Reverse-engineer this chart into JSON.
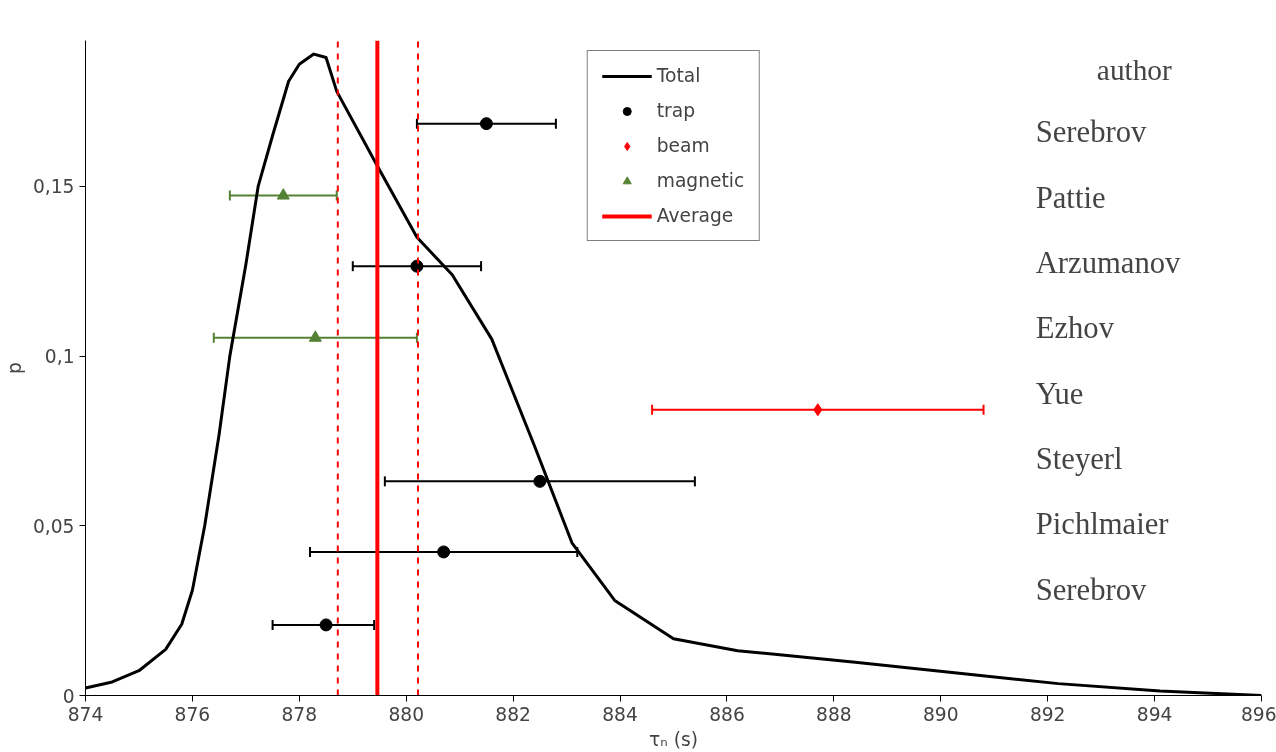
{
  "chart_data": {
    "type": "scatter",
    "xlabel": "τₙ (s)",
    "ylabel": "p",
    "xlim": [
      874,
      896
    ],
    "xticks": [
      874,
      876,
      878,
      880,
      882,
      884,
      886,
      888,
      890,
      892,
      894,
      896
    ],
    "ylim": [
      0,
      0.193
    ],
    "yticks": [
      0,
      {
        "value": 0.05,
        "label": "0,05"
      },
      {
        "value": 0.1,
        "label": "0,1"
      },
      {
        "value": 0.15,
        "label": "0,15"
      }
    ],
    "grid": false,
    "legend": "top",
    "series": [
      {
        "name": "Total",
        "type": "line",
        "color": "#000000",
        "marker": "none",
        "line_style": "solid",
        "x": [
          874,
          874.5,
          875,
          875.5,
          875.8,
          876.0,
          876.23,
          876.5,
          876.7,
          877.0,
          877.23,
          877.5,
          877.8,
          878.0,
          878.27,
          878.5,
          878.7,
          879.46,
          880.2,
          880.86,
          881.6,
          882.4,
          883.1,
          883.9,
          885.0,
          886.2,
          888.4,
          890.3,
          892.2,
          894.1,
          896
        ],
        "values": [
          0.0022,
          0.004,
          0.0073,
          0.0136,
          0.021,
          0.031,
          0.05,
          0.077,
          0.1,
          0.127,
          0.15,
          0.165,
          0.181,
          0.186,
          0.189,
          0.188,
          0.178,
          0.156,
          0.135,
          0.124,
          0.105,
          0.0735,
          0.045,
          0.028,
          0.0167,
          0.0132,
          0.0098,
          0.0066,
          0.0035,
          0.0013,
          0
        ]
      },
      {
        "name": "trap",
        "color": "#000000",
        "marker": "circle",
        "x": [
          881.5,
          880.2,
          882.5,
          880.7,
          878.5
        ],
        "values": [
          0.1685,
          0.1265,
          0.0631,
          0.0423,
          0.0208
        ],
        "xerrors": [
          [
            880.2,
            882.8
          ],
          [
            879.0,
            881.4
          ],
          [
            879.6,
            885.4
          ],
          [
            878.2,
            883.2
          ],
          [
            877.5,
            879.4
          ]
        ]
      },
      {
        "name": "beam",
        "color": "#ff0000",
        "marker": "diamond",
        "x": [
          887.7
        ],
        "values": [
          0.0842
        ],
        "xerrors": [
          [
            884.6,
            890.8
          ]
        ]
      },
      {
        "name": "magnetic",
        "color": "#548235",
        "marker": "triangle",
        "x": [
          877.7,
          878.3
        ],
        "values": [
          0.1473,
          0.1054
        ],
        "xerrors": [
          [
            876.7,
            878.7
          ],
          [
            876.4,
            880.2
          ]
        ]
      },
      {
        "name": "Average",
        "type": "line",
        "color": "#ff0000",
        "marker": "none",
        "line_style": "solid",
        "x": [
          879.46,
          879.46
        ],
        "values": [
          0,
          0.193
        ]
      }
    ],
    "ref_lines": [
      {
        "axis": "x",
        "value": 878.72,
        "label": null,
        "color": "#ff0000",
        "line_style": "dashed"
      },
      {
        "axis": "x",
        "value": 880.22,
        "label": null,
        "color": "#ff0000",
        "line_style": "dashed"
      }
    ],
    "annotations": [
      "author",
      "Serebrov",
      "Pattie",
      "Arzumanov",
      "Ezhov",
      "Yue",
      "Steyerl",
      "Pichlmaier",
      "Serebrov"
    ]
  }
}
